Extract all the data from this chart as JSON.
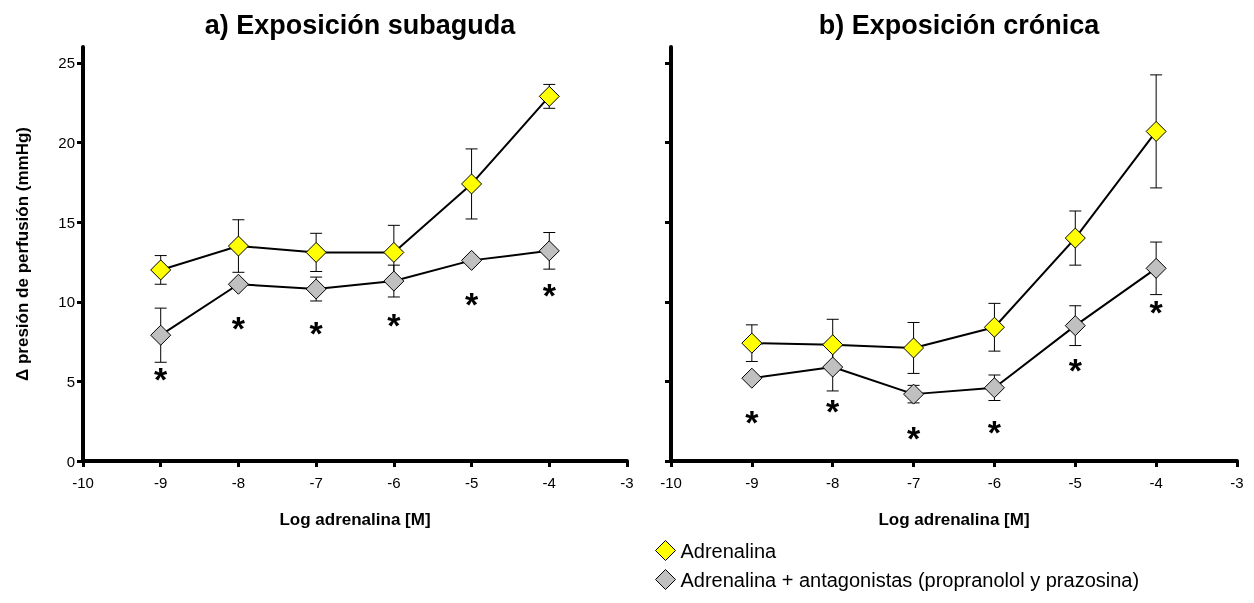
{
  "chart_data": [
    {
      "type": "line",
      "title": "a) Exposición subaguda",
      "xlabel": "Log adrenalina [M]",
      "ylabel": "Δ presión de perfusión (mmHg)",
      "x": [
        -9,
        -8,
        -7,
        -6,
        -5,
        -4
      ],
      "xlim": [
        -10,
        -3
      ],
      "xticks": [
        -10,
        -9,
        -8,
        -7,
        -6,
        -5,
        -4,
        -3
      ],
      "ylim": [
        0,
        26
      ],
      "yticks": [
        0,
        5,
        10,
        15,
        20,
        25
      ],
      "marker": "diamond",
      "line_style": "solid",
      "grid": false,
      "legend": false,
      "series": [
        {
          "color": "#ffff00",
          "values": [
            12.0,
            13.5,
            13.1,
            13.1,
            17.4,
            22.9
          ],
          "errors": [
            0.9,
            1.65,
            1.2,
            1.7,
            2.2,
            0.75
          ]
        },
        {
          "color": "#c0c0c0",
          "values": [
            7.9,
            11.1,
            10.8,
            11.3,
            12.6,
            13.2
          ],
          "errors": [
            1.7,
            null,
            0.75,
            1.0,
            null,
            1.15
          ]
        }
      ],
      "annotations": [
        {
          "text": "*",
          "x": -9,
          "y": 7.9
        },
        {
          "text": "*",
          "x": -8,
          "y": 11.1
        },
        {
          "text": "*",
          "x": -7,
          "y": 10.8
        },
        {
          "text": "*",
          "x": -6,
          "y": 11.3
        },
        {
          "text": "*",
          "x": -5,
          "y": 12.6
        },
        {
          "text": "*",
          "x": -4,
          "y": 13.2
        }
      ]
    },
    {
      "type": "line",
      "title": "b) Exposición crónica",
      "xlabel": "Log adrenalina [M]",
      "x": [
        -9,
        -8,
        -7,
        -6,
        -5,
        -4
      ],
      "xlim": [
        -10,
        -3
      ],
      "xticks": [
        -10,
        -9,
        -8,
        -7,
        -6,
        -5,
        -4,
        -3
      ],
      "ylim": [
        0,
        26
      ],
      "yticks": [
        0,
        5,
        10,
        15,
        20,
        25
      ],
      "tick_labels": "x",
      "marker": "diamond",
      "line_style": "solid",
      "grid": false,
      "legend": "bottom",
      "series": [
        {
          "name": "Adrenalina",
          "color": "#ffff00",
          "values": [
            7.4,
            7.3,
            7.1,
            8.4,
            14.0,
            20.7
          ],
          "errors": [
            1.15,
            1.6,
            1.6,
            1.5,
            1.7,
            3.55
          ]
        },
        {
          "name": "Adrenalina + antagonistas (propranolol y prazosina)",
          "color": "#c0c0c0",
          "values": [
            5.2,
            5.9,
            4.2,
            4.6,
            8.5,
            12.1
          ],
          "errors": [
            null,
            1.5,
            0.55,
            0.8,
            1.25,
            1.65
          ]
        }
      ],
      "annotations": [
        {
          "text": "*",
          "x": -9,
          "y": 5.2
        },
        {
          "text": "*",
          "x": -8,
          "y": 5.9
        },
        {
          "text": "*",
          "x": -7,
          "y": 4.2
        },
        {
          "text": "*",
          "x": -6,
          "y": 4.6
        },
        {
          "text": "*",
          "x": -5,
          "y": 8.5
        },
        {
          "text": "*",
          "x": -4,
          "y": 12.1
        }
      ]
    }
  ]
}
